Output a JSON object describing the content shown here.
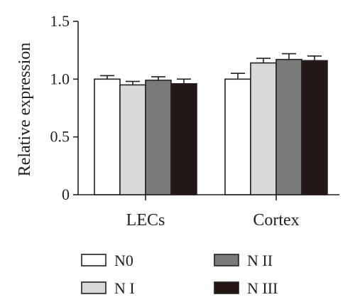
{
  "chart_data": {
    "type": "bar",
    "title": "",
    "xlabel": "",
    "ylabel": "Relative expression",
    "ylim": [
      0,
      1.5
    ],
    "yticks": [
      0,
      0.5,
      1.0,
      1.5
    ],
    "ytick_labels": [
      "0",
      "0.5",
      "1.0",
      "1.5"
    ],
    "categories": [
      "LECs",
      "Cortex"
    ],
    "grid": false,
    "legend_position": "bottom",
    "series": [
      {
        "name": "N0",
        "values": [
          1.0,
          1.0
        ],
        "errors": [
          0.03,
          0.05
        ],
        "color": "#ffffff"
      },
      {
        "name": "N I",
        "values": [
          0.95,
          1.14
        ],
        "errors": [
          0.03,
          0.04
        ],
        "color": "#d9d9d9"
      },
      {
        "name": "N II",
        "values": [
          0.99,
          1.17
        ],
        "errors": [
          0.03,
          0.05
        ],
        "color": "#7a7a7a"
      },
      {
        "name": "N III",
        "values": [
          0.96,
          1.16
        ],
        "errors": [
          0.04,
          0.04
        ],
        "color": "#231815"
      }
    ]
  }
}
